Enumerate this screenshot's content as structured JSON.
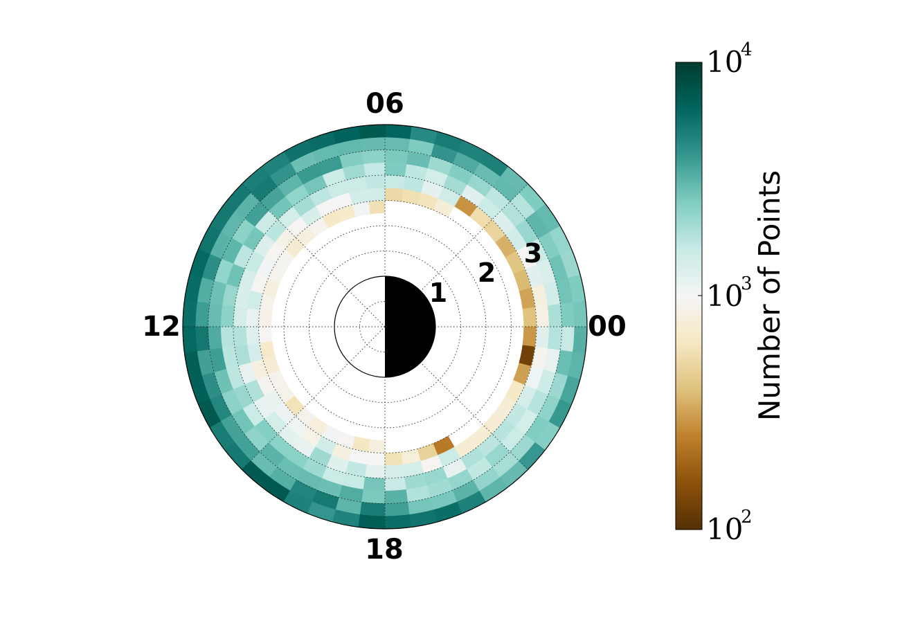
{
  "chart_data": {
    "type": "heatmap",
    "projection": "polar",
    "description_axes": {
      "angular_labels": [
        "00",
        "06",
        "12",
        "18"
      ],
      "radial_labels": [
        "1",
        "2",
        "3"
      ],
      "radial_range": [
        0,
        4
      ],
      "radial_gridlines": [
        0.5,
        1,
        1.5,
        2,
        2.5,
        3,
        3.5
      ],
      "angular_gridlines_hours": [
        0,
        3,
        6,
        9,
        12,
        15,
        18,
        21
      ],
      "empty_region_max_radius": 1.75
    },
    "bins": {
      "radial_start": 1.75,
      "radial_step": 0.25,
      "radial_count": 9,
      "hour_step": 0.5,
      "hour_count": 48,
      "inner_front": {
        "day_side_start_radius": 2.25,
        "night_side_start_radius": 2.75,
        "night_side_radius_reduction": 0.5,
        "low_count_band_hours_from_midnight": 6
      }
    },
    "colorbar": {
      "label": "Number of Points",
      "scale": "log",
      "range": [
        100,
        10000
      ],
      "ticks": [
        {
          "base": "10",
          "exponent": "2",
          "value": 100
        },
        {
          "base": "10",
          "exponent": "3",
          "value": 1000
        },
        {
          "base": "10",
          "exponent": "4",
          "value": 10000
        }
      ],
      "colormap": "BrBG",
      "colormap_stops": [
        "#543005",
        "#8c510a",
        "#bf812d",
        "#dfc27d",
        "#f6e8c3",
        "#f5f5f5",
        "#c7eae5",
        "#80cdc1",
        "#35978f",
        "#01665e",
        "#003c30"
      ]
    },
    "planet": {
      "day_color": "#ffffff",
      "night_color": "#000000"
    }
  }
}
